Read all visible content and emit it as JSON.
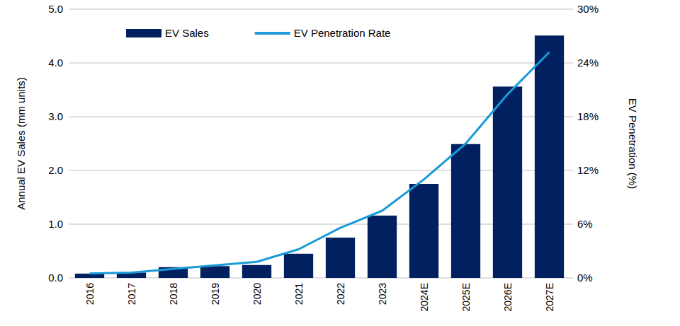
{
  "chart_data": {
    "type": "bar",
    "categories": [
      "2016",
      "2017",
      "2018",
      "2019",
      "2020",
      "2021",
      "2022",
      "2023",
      "2024E",
      "2025E",
      "2026E",
      "2027E"
    ],
    "series": [
      {
        "name": "EV Sales",
        "type": "bar",
        "color": "#002060",
        "axis": "y",
        "values": [
          0.08,
          0.1,
          0.2,
          0.22,
          0.24,
          0.45,
          0.75,
          1.16,
          1.75,
          2.49,
          3.56,
          4.51
        ]
      },
      {
        "name": "EV Penetration Rate",
        "type": "line",
        "color": "#1a9ad6",
        "axis": "y2",
        "values": [
          0.5,
          0.6,
          1.0,
          1.4,
          1.8,
          3.2,
          5.6,
          7.5,
          11.0,
          15.0,
          20.5,
          25.2
        ]
      }
    ],
    "y_label": "Annual EV Sales (mm units)",
    "y2_label": "EV Penetration (%)",
    "ylim": [
      0,
      5
    ],
    "yticks": [
      {
        "value": 0,
        "label": "0.0"
      },
      {
        "value": 1,
        "label": "1.0"
      },
      {
        "value": 2,
        "label": "2.0"
      },
      {
        "value": 3,
        "label": "3.0"
      },
      {
        "value": 4,
        "label": "4.0"
      },
      {
        "value": 5,
        "label": "5.0"
      }
    ],
    "y2lim": [
      0,
      30
    ],
    "y2ticks": [
      {
        "value": 0,
        "label": "0%"
      },
      {
        "value": 6,
        "label": "6%"
      },
      {
        "value": 12,
        "label": "12%"
      },
      {
        "value": 18,
        "label": "18%"
      },
      {
        "value": 24,
        "label": "24%"
      },
      {
        "value": 30,
        "label": "30%"
      }
    ],
    "grid": true,
    "legend": "top-left"
  }
}
